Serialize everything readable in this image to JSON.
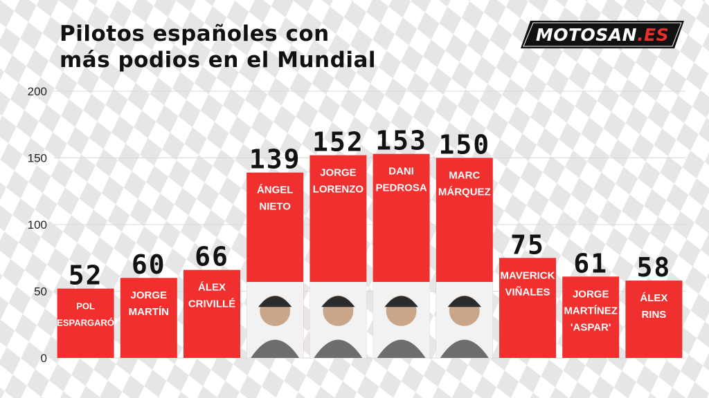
{
  "title_line1": "Pilotos españoles con",
  "title_line2": "más podios en el Mundial",
  "logo": {
    "main": "MOTOSAN",
    "suffix": ".ES"
  },
  "colors": {
    "bar": "#f0302e",
    "grid": "#d9d9d9",
    "value": "#111111",
    "label": "#ffffff",
    "photo_bg": "#f2f2f2"
  },
  "chart_data": {
    "type": "bar",
    "title": "Pilotos españoles con más podios en el Mundial",
    "xlabel": "",
    "ylabel": "",
    "ylim": [
      0,
      200
    ],
    "yticks": [
      0,
      50,
      100,
      150,
      200
    ],
    "grid": true,
    "categories": [
      [
        "POL",
        "ESPARGARÓ"
      ],
      [
        "JORGE",
        "MARTÍN"
      ],
      [
        "ÁLEX",
        "CRIVILLÉ"
      ],
      [
        "ÁNGEL",
        "NIETO"
      ],
      [
        "JORGE",
        "LORENZO"
      ],
      [
        "DANI",
        "PEDROSA"
      ],
      [
        "MARC",
        "MÁRQUEZ"
      ],
      [
        "MAVERICK",
        "VIÑALES"
      ],
      [
        "JORGE",
        "MARTÍNEZ",
        "'ASPAR'"
      ],
      [
        "ÁLEX",
        "RINS"
      ]
    ],
    "values": [
      52,
      60,
      66,
      139,
      152,
      153,
      150,
      75,
      61,
      58
    ],
    "photos": [
      false,
      false,
      false,
      true,
      true,
      true,
      true,
      false,
      false,
      false
    ]
  }
}
